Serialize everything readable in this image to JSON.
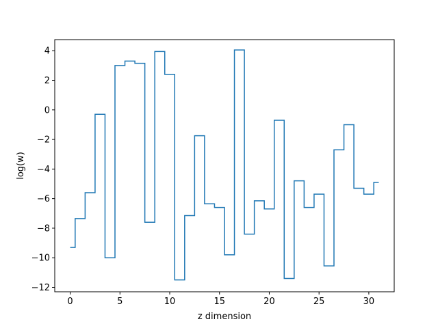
{
  "chart_data": {
    "type": "line",
    "drawstyle": "steps-mid",
    "title": "",
    "xlabel": "z dimension",
    "ylabel": "log(w)",
    "xlim": [
      -1.55,
      32.55
    ],
    "ylim": [
      -12.3,
      4.75
    ],
    "grid": false,
    "xticks": [
      0,
      5,
      10,
      15,
      20,
      25,
      30
    ],
    "yticks": [
      -12,
      -10,
      -8,
      -6,
      -4,
      -2,
      0,
      2,
      4
    ],
    "x": [
      0,
      1,
      2,
      3,
      4,
      5,
      6,
      7,
      8,
      9,
      10,
      11,
      12,
      13,
      14,
      15,
      16,
      17,
      18,
      19,
      20,
      21,
      22,
      23,
      24,
      25,
      26,
      27,
      28,
      29,
      30,
      31
    ],
    "series": [
      {
        "color": "#1f77b4",
        "values": [
          -9.3,
          -7.35,
          -5.6,
          -0.3,
          -10.0,
          3.0,
          3.3,
          3.15,
          -7.6,
          3.95,
          2.4,
          -11.5,
          -7.15,
          -1.75,
          -6.35,
          -6.6,
          -9.8,
          4.05,
          -8.4,
          -6.15,
          -6.7,
          -0.7,
          -11.4,
          -4.8,
          -6.6,
          -5.7,
          -10.55,
          -2.7,
          -1.0,
          -5.3,
          -5.7,
          -4.9
        ]
      }
    ]
  }
}
